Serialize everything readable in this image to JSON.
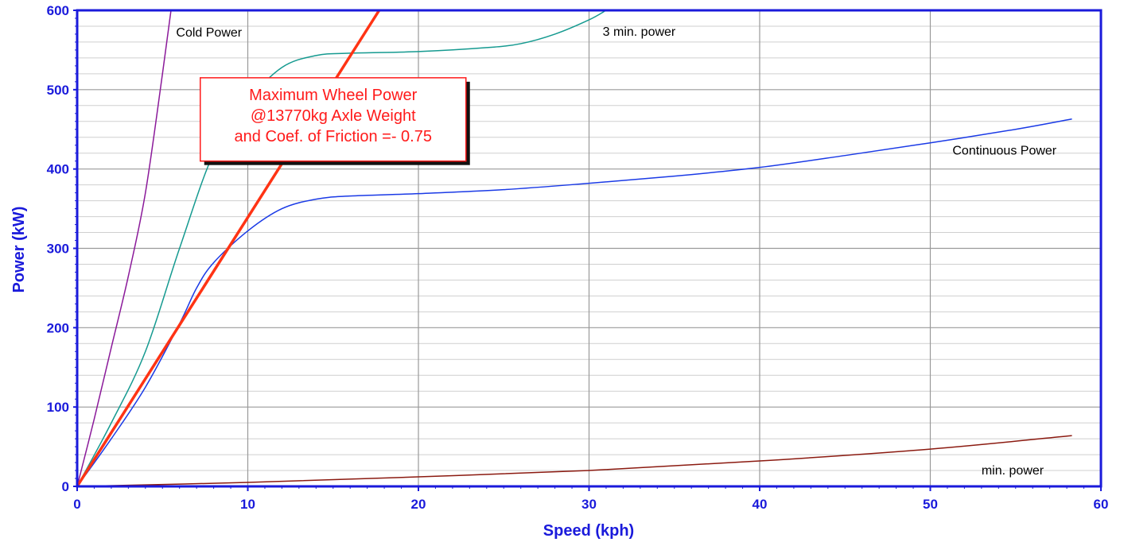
{
  "chart_data": {
    "type": "line",
    "title": "",
    "xlabel": "Speed  (kph)",
    "ylabel": "Power  (kW)",
    "xlim": [
      0,
      60
    ],
    "ylim": [
      0,
      600
    ],
    "x_ticks": [
      0,
      10,
      20,
      30,
      40,
      50,
      60
    ],
    "y_ticks": [
      0,
      100,
      200,
      300,
      400,
      500,
      600
    ],
    "x_tick_labels": [
      "0",
      "10",
      "20",
      "30",
      "40",
      "50",
      "60"
    ],
    "y_tick_labels": [
      "0",
      "100",
      "200",
      "300",
      "400",
      "500",
      "600"
    ],
    "grid": true,
    "minor_grid_y_step": 20,
    "colors": {
      "axis": "#1a1adb",
      "grid_major": "#9a9a9a",
      "grid_minor": "#cfcfcf",
      "callout_border": "#ff1a1a",
      "callout_text": "#ff1a1a",
      "callout_shadow": "#111111"
    },
    "series": [
      {
        "name": "Cold Power",
        "color": "#8b1a9a",
        "x": [
          0,
          1,
          2,
          3,
          4,
          5,
          5.5
        ],
        "y": [
          0,
          85,
          175,
          265,
          370,
          520,
          600
        ]
      },
      {
        "name": "3 min. power",
        "color": "#159a90",
        "x": [
          0,
          2,
          4,
          6,
          8,
          10,
          12,
          14,
          16,
          20,
          24,
          26,
          28,
          30,
          31
        ],
        "y": [
          0,
          80,
          170,
          300,
          420,
          485,
          528,
          543,
          546,
          548,
          553,
          558,
          570,
          588,
          600
        ]
      },
      {
        "name": "Continuous Power",
        "color": "#1a3ae6",
        "x": [
          0,
          2,
          4,
          6,
          7,
          8,
          10,
          12,
          14,
          16,
          20,
          25,
          30,
          35,
          40,
          45,
          50,
          55,
          58.3
        ],
        "y": [
          0,
          60,
          125,
          205,
          250,
          282,
          322,
          350,
          362,
          366,
          369,
          374,
          382,
          391,
          402,
          417,
          433,
          450,
          463
        ]
      },
      {
        "name": "min. power",
        "color": "#8b1a10",
        "x": [
          0,
          10,
          20,
          30,
          40,
          50,
          58.3
        ],
        "y": [
          0,
          5,
          12,
          20,
          32,
          47,
          64
        ]
      },
      {
        "name": "Maximum Wheel Power",
        "color": "#ff3314",
        "x": [
          0,
          17.7
        ],
        "y": [
          0,
          600
        ]
      }
    ],
    "series_labels": [
      {
        "text": "Cold Power",
        "at": [
          5.8,
          567
        ]
      },
      {
        "text": "3 min. power",
        "at": [
          30.8,
          568
        ]
      },
      {
        "text": "Continuous Power",
        "at": [
          51.3,
          418
        ]
      },
      {
        "text": "min. power",
        "at": [
          53.0,
          15
        ]
      }
    ],
    "annotation": {
      "lines": [
        "Maximum Wheel Power",
        "@13770kg Axle Weight",
        "and Coef. of Friction =- 0.75"
      ],
      "anchor_x": 15,
      "anchor_y": [
        515,
        410
      ]
    }
  }
}
